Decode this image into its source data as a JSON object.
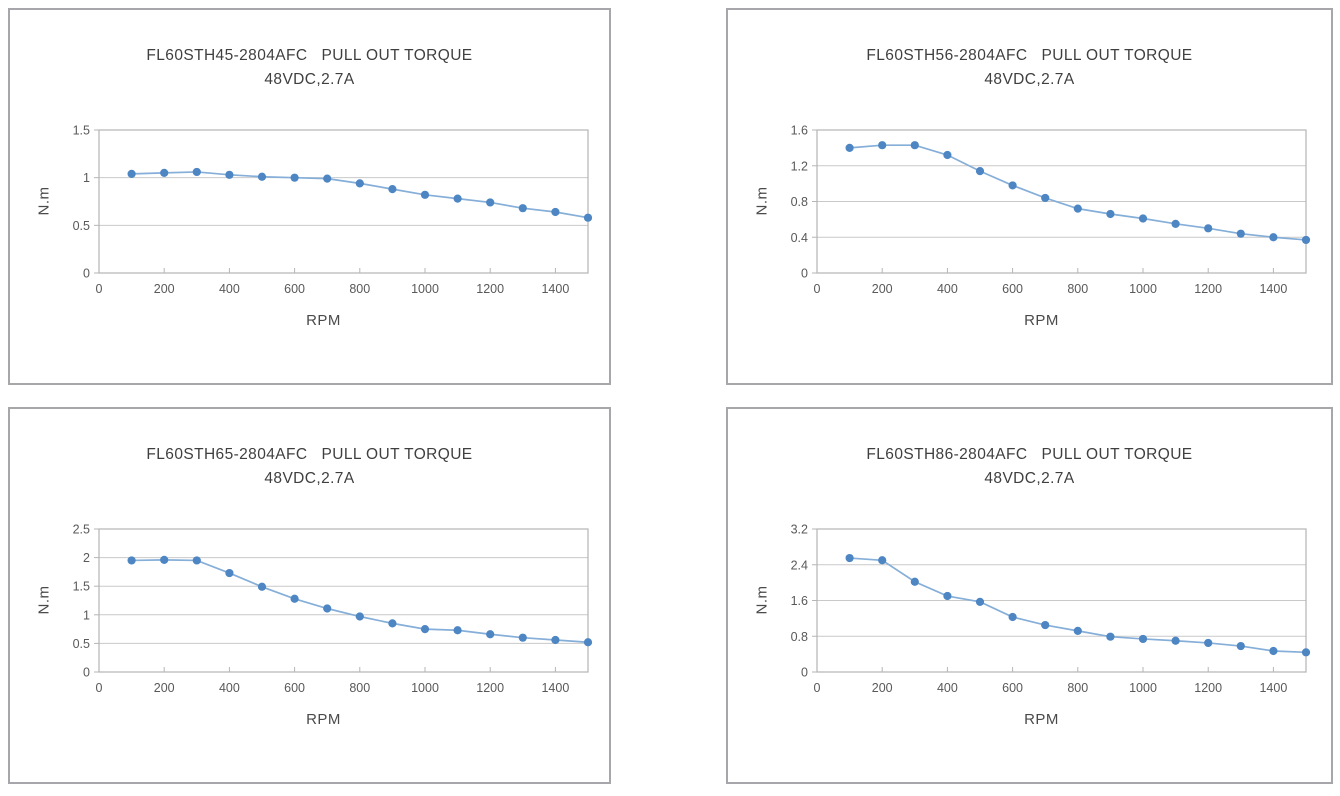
{
  "page": {
    "background": "#ffffff"
  },
  "styles": {
    "box_border_color": "#a7a7ab",
    "axis_color": "#b5b5b5",
    "grid_color": "#c9c9c9",
    "tick_text_color": "#595959",
    "title_color": "#3f3f3f",
    "line_color": "#85aed8",
    "marker_color": "#4d86c3"
  },
  "chart_data": [
    {
      "type": "line",
      "title": "FL60STH45-2804AFC   PULL OUT TORQUE",
      "subtitle": "48VDC,2.7A",
      "xlabel": "RPM",
      "ylabel": "N.m",
      "x": [
        100,
        200,
        300,
        400,
        500,
        600,
        700,
        800,
        900,
        1000,
        1100,
        1200,
        1300,
        1400,
        1500
      ],
      "values": [
        1.04,
        1.05,
        1.06,
        1.03,
        1.01,
        1.0,
        0.99,
        0.94,
        0.88,
        0.82,
        0.78,
        0.74,
        0.68,
        0.64,
        0.58
      ],
      "xlim": [
        0,
        1500
      ],
      "ylim": [
        0,
        1.5
      ],
      "x_ticks": [
        0,
        200,
        400,
        600,
        800,
        1000,
        1200,
        1400
      ],
      "y_ticks": [
        0,
        0.5,
        1,
        1.5
      ],
      "grid": true,
      "legend": "none"
    },
    {
      "type": "line",
      "title": "FL60STH56-2804AFC   PULL OUT TORQUE",
      "subtitle": "48VDC,2.7A",
      "xlabel": "RPM",
      "ylabel": "N.m",
      "x": [
        100,
        200,
        300,
        400,
        500,
        600,
        700,
        800,
        900,
        1000,
        1100,
        1200,
        1300,
        1400,
        1500
      ],
      "values": [
        1.4,
        1.43,
        1.43,
        1.32,
        1.14,
        0.98,
        0.84,
        0.72,
        0.66,
        0.61,
        0.55,
        0.5,
        0.44,
        0.4,
        0.37
      ],
      "xlim": [
        0,
        1500
      ],
      "ylim": [
        0,
        1.6
      ],
      "x_ticks": [
        0,
        200,
        400,
        600,
        800,
        1000,
        1200,
        1400
      ],
      "y_ticks": [
        0,
        0.4,
        0.8,
        1.2,
        1.6
      ],
      "grid": true,
      "legend": "none"
    },
    {
      "type": "line",
      "title": "FL60STH65-2804AFC   PULL OUT TORQUE",
      "subtitle": "48VDC,2.7A",
      "xlabel": "RPM",
      "ylabel": "N.m",
      "x": [
        100,
        200,
        300,
        400,
        500,
        600,
        700,
        800,
        900,
        1000,
        1100,
        1200,
        1300,
        1400,
        1500
      ],
      "values": [
        1.95,
        1.96,
        1.95,
        1.73,
        1.49,
        1.28,
        1.11,
        0.97,
        0.85,
        0.75,
        0.73,
        0.66,
        0.6,
        0.56,
        0.52
      ],
      "xlim": [
        0,
        1500
      ],
      "ylim": [
        0,
        2.5
      ],
      "x_ticks": [
        0,
        200,
        400,
        600,
        800,
        1000,
        1200,
        1400
      ],
      "y_ticks": [
        0,
        0.5,
        1,
        1.5,
        2,
        2.5
      ],
      "grid": true,
      "legend": "none"
    },
    {
      "type": "line",
      "title": "FL60STH86-2804AFC   PULL OUT TORQUE",
      "subtitle": "48VDC,2.7A",
      "xlabel": "RPM",
      "ylabel": "N.m",
      "x": [
        100,
        200,
        300,
        400,
        500,
        600,
        700,
        800,
        900,
        1000,
        1100,
        1200,
        1300,
        1400,
        1500
      ],
      "values": [
        2.55,
        2.5,
        2.02,
        1.7,
        1.57,
        1.23,
        1.05,
        0.92,
        0.79,
        0.74,
        0.7,
        0.65,
        0.58,
        0.47,
        0.44
      ],
      "xlim": [
        0,
        1500
      ],
      "ylim": [
        0,
        3.2
      ],
      "x_ticks": [
        0,
        200,
        400,
        600,
        800,
        1000,
        1200,
        1400
      ],
      "y_ticks": [
        0,
        0.8,
        1.6,
        2.4,
        3.2
      ],
      "grid": true,
      "legend": "none"
    }
  ]
}
